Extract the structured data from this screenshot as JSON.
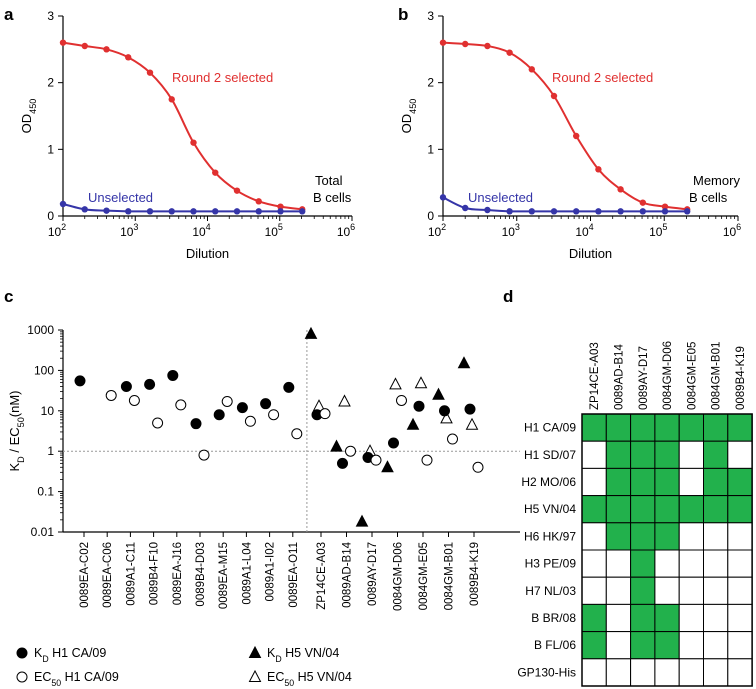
{
  "chart_data": [
    {
      "panel": "a",
      "type": "line",
      "xscale": "log",
      "xlabel": "Dilution",
      "ylabel": "OD",
      "ylabel_sub": "450",
      "xlim": [
        100,
        1000000
      ],
      "ylim": [
        0,
        3
      ],
      "xticks": [
        {
          "base": "10",
          "exp": "2"
        },
        {
          "base": "10",
          "exp": "3"
        },
        {
          "base": "10",
          "exp": "4"
        },
        {
          "base": "10",
          "exp": "5"
        },
        {
          "base": "10",
          "exp": "6"
        }
      ],
      "yticks": [
        "0",
        "1",
        "2",
        "3"
      ],
      "annotations": [
        "Total",
        "B cells"
      ],
      "series": [
        {
          "name": "Round 2 selected",
          "color": "#e03030",
          "x": [
            100,
            200,
            400,
            800,
            1600,
            3200,
            6400,
            12800,
            25600,
            51200,
            102400,
            204800
          ],
          "y": [
            2.6,
            2.55,
            2.5,
            2.38,
            2.15,
            1.75,
            1.1,
            0.65,
            0.38,
            0.22,
            0.14,
            0.1
          ]
        },
        {
          "name": "Unselected",
          "color": "#3535a8",
          "x": [
            100,
            200,
            400,
            800,
            1600,
            3200,
            6400,
            12800,
            25600,
            51200,
            102400,
            204800
          ],
          "y": [
            0.18,
            0.1,
            0.08,
            0.07,
            0.07,
            0.07,
            0.07,
            0.07,
            0.07,
            0.07,
            0.07,
            0.07
          ]
        }
      ]
    },
    {
      "panel": "b",
      "type": "line",
      "xscale": "log",
      "xlabel": "Dilution",
      "ylabel": "OD",
      "ylabel_sub": "450",
      "xlim": [
        100,
        1000000
      ],
      "ylim": [
        0,
        3
      ],
      "xticks": [
        {
          "base": "10",
          "exp": "2"
        },
        {
          "base": "10",
          "exp": "3"
        },
        {
          "base": "10",
          "exp": "4"
        },
        {
          "base": "10",
          "exp": "5"
        },
        {
          "base": "10",
          "exp": "6"
        }
      ],
      "yticks": [
        "0",
        "1",
        "2",
        "3"
      ],
      "annotations": [
        "Memory",
        "B cells"
      ],
      "series": [
        {
          "name": "Round 2 selected",
          "color": "#e03030",
          "x": [
            100,
            200,
            400,
            800,
            1600,
            3200,
            6400,
            12800,
            25600,
            51200,
            102400,
            204800
          ],
          "y": [
            2.6,
            2.58,
            2.55,
            2.45,
            2.2,
            1.8,
            1.2,
            0.7,
            0.4,
            0.2,
            0.14,
            0.1
          ]
        },
        {
          "name": "Unselected",
          "color": "#3535a8",
          "x": [
            100,
            200,
            400,
            800,
            1600,
            3200,
            6400,
            12800,
            25600,
            51200,
            102400,
            204800
          ],
          "y": [
            0.28,
            0.12,
            0.09,
            0.07,
            0.07,
            0.07,
            0.07,
            0.07,
            0.07,
            0.07,
            0.07,
            0.07
          ]
        }
      ]
    },
    {
      "panel": "c",
      "type": "scatter",
      "yscale": "log",
      "ylabel_pre": "K",
      "ylabel_pre_sub": "D",
      "ylabel_mid": " / EC",
      "ylabel_mid_sub": "50",
      "ylabel_post": "(nM)",
      "ylim": [
        0.01,
        1000
      ],
      "yticks": [
        "0.01",
        "0.1",
        "1",
        "10",
        "100",
        "1000"
      ],
      "reference_line": 1,
      "categories": [
        "0089EA-C02",
        "0089EA-C06",
        "0089A1-C11",
        "0089B4-F10",
        "0089EA-J16",
        "0089B4-D03",
        "0089EA-M15",
        "0089A1-L04",
        "0089A1-I02",
        "0089EA-O11",
        "ZP14CE-A03",
        "0089AD-B14",
        "0089AY-D17",
        "0084GM-D06",
        "0084GM-E05",
        "0084GM-B01",
        "0089B4-K19"
      ],
      "series": [
        {
          "name": "KD H1 CA/09",
          "legend_main": "K",
          "legend_sub": "D",
          "legend_rest": " H1 CA/09",
          "marker": "filled-circle",
          "group": 1,
          "values": [
            55,
            null,
            40,
            45,
            75,
            4.8,
            8,
            12,
            15,
            38,
            null,
            null,
            null,
            null,
            null,
            null,
            null
          ]
        },
        {
          "name": "EC50 H1 CA/09",
          "legend_main": "EC",
          "legend_sub": "50",
          "legend_rest": " H1 CA/09",
          "marker": "open-circle",
          "group": 1,
          "values": [
            null,
            24,
            18,
            5,
            14,
            0.8,
            17,
            5.5,
            8,
            2.7,
            null,
            null,
            null,
            null,
            null,
            null,
            null
          ]
        },
        {
          "name": "KD H5 VN/04",
          "legend_main": "K",
          "legend_sub": "D",
          "legend_rest": " H5 VN/04",
          "marker": "filled-triangle",
          "group": 2,
          "values": [
            null,
            null,
            null,
            null,
            null,
            null,
            null,
            null,
            null,
            null,
            800,
            1.3,
            0.018,
            0.4,
            4.5,
            25,
            150
          ]
        },
        {
          "name": "EC50 H5 VN/04",
          "legend_main": "EC",
          "legend_sub": "50",
          "legend_rest": " H5 VN/04",
          "marker": "open-triangle",
          "group": 2,
          "values": [
            null,
            null,
            null,
            null,
            null,
            null,
            null,
            null,
            null,
            null,
            13,
            17,
            1,
            45,
            48,
            6.5,
            4.5
          ]
        },
        {
          "name": "KD H1 CA/09 (H5 group)",
          "legend_main": "",
          "legend_sub": "",
          "legend_rest": "",
          "marker": "filled-circle",
          "group": 2,
          "values": [
            null,
            null,
            null,
            null,
            null,
            null,
            null,
            null,
            null,
            null,
            8,
            0.5,
            0.7,
            1.6,
            13,
            10,
            11
          ]
        },
        {
          "name": "EC50 H1 CA/09 (H5 group)",
          "legend_main": "",
          "legend_sub": "",
          "legend_rest": "",
          "marker": "open-circle",
          "group": 2,
          "values": [
            null,
            null,
            null,
            null,
            null,
            null,
            null,
            null,
            null,
            null,
            8.5,
            1,
            0.6,
            18,
            0.6,
            2,
            0.4
          ]
        }
      ],
      "legend": [
        0,
        1,
        2,
        3
      ]
    },
    {
      "panel": "d",
      "type": "heatmap",
      "fill_color": "#22b14c",
      "empty_color": "#ffffff",
      "columns": [
        "ZP14CE-A03",
        "0089AD-B14",
        "0089AY-D17",
        "0084GM-D06",
        "0084GM-E05",
        "0084GM-B01",
        "0089B4-K19"
      ],
      "rows": [
        "H1 CA/09",
        "H1 SD/07",
        "H2 MO/06",
        "H5 VN/04",
        "H6 HK/97",
        "H3 PE/09",
        "H7 NL/03",
        "B BR/08",
        "B FL/06",
        "GP130-His"
      ],
      "values": [
        [
          1,
          1,
          1,
          1,
          1,
          1,
          1
        ],
        [
          0,
          1,
          1,
          1,
          0,
          1,
          0
        ],
        [
          0,
          1,
          1,
          1,
          0,
          1,
          1
        ],
        [
          1,
          1,
          1,
          1,
          1,
          1,
          1
        ],
        [
          0,
          1,
          1,
          1,
          0,
          0,
          0
        ],
        [
          0,
          0,
          1,
          0,
          0,
          0,
          0
        ],
        [
          0,
          0,
          1,
          0,
          0,
          0,
          0
        ],
        [
          1,
          0,
          1,
          1,
          0,
          0,
          0
        ],
        [
          1,
          0,
          1,
          1,
          0,
          0,
          0
        ],
        [
          0,
          0,
          0,
          0,
          0,
          0,
          0
        ]
      ]
    }
  ]
}
